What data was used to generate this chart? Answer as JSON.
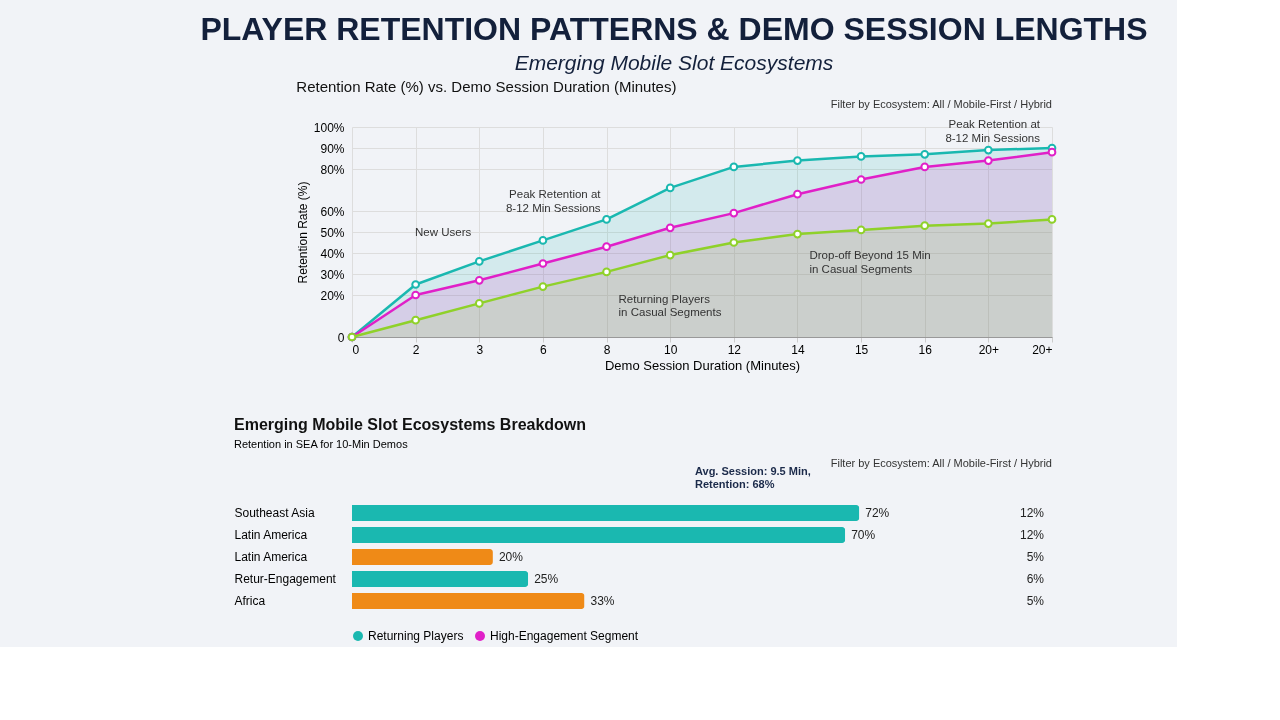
{
  "chart_data": [
    {
      "type": "area",
      "title": "Retention Rate (%) vs. Demo Session Duration (Minutes)",
      "xlabel": "Demo Session Duration (Minutes)",
      "ylabel": "Retention Rate (%)",
      "categories": [
        "0",
        "2",
        "3",
        "6",
        "8",
        "10",
        "12",
        "14",
        "15",
        "16",
        "20+",
        "20+"
      ],
      "series": [
        {
          "color": "#1ab8b0",
          "values": [
            0,
            25,
            36,
            46,
            56,
            71,
            81,
            84,
            86,
            87,
            89,
            90
          ]
        },
        {
          "color": "#e020c8",
          "values": [
            0,
            20,
            27,
            35,
            43,
            52,
            59,
            68,
            75,
            81,
            84,
            88
          ]
        },
        {
          "color": "#8fd12a",
          "values": [
            0,
            8,
            16,
            24,
            31,
            39,
            45,
            49,
            51,
            53,
            54,
            56
          ]
        }
      ],
      "ylim": [
        0,
        100
      ],
      "yticks": [
        {
          "value": 0,
          "label": "0"
        },
        {
          "value": 20,
          "label": "20%"
        },
        {
          "value": 30,
          "label": "30%"
        },
        {
          "value": 40,
          "label": "40%"
        },
        {
          "value": 50,
          "label": "50%"
        },
        {
          "value": 60,
          "label": "60%"
        },
        {
          "value": 80,
          "label": "80%"
        },
        {
          "value": 90,
          "label": "90%"
        },
        {
          "value": 100,
          "label": "100%"
        }
      ],
      "grid": true,
      "marker": "circle",
      "line_style": "solid",
      "annotations": [
        "PLAYER RETENTION PATTERNS & DEMO SESSION LENGTHS",
        "Emerging Mobile Slot Ecosystems",
        "Filter by Ecosystem: All / Mobile-First / Hybrid",
        "Peak Retention at\n8-12 Min Sessions",
        {
          "text": "New Users",
          "x": "3",
          "y": 36
        },
        {
          "text": "Peak Retention at\n8-12 Min Sessions",
          "x": "8",
          "y": 56
        },
        {
          "text": "Drop-off Beyond 15 Min\nin Casual Segments",
          "x": "14",
          "y": 49
        },
        {
          "text": "Returning Players\nin Casual Segments",
          "x": "8",
          "y": 31
        }
      ]
    },
    {
      "type": "bar",
      "orientation": "horizontal",
      "title": "Emerging Mobile Slot Ecosystems Breakdown",
      "subtitle": "Retention in SEA for 10-Min Demos",
      "categories": [
        "Southeast Asia",
        "Latin America",
        "Latin America",
        "Retur-Engagement",
        "Africa"
      ],
      "series": [
        {
          "name": "Returning Players",
          "color": "#1ab8b0",
          "colors": [
            "#1ab8b0",
            "#1ab8b0",
            "#ef8a17",
            "#1ab8b0",
            "#ef8a17"
          ],
          "values": [
            72,
            70,
            20,
            25,
            33
          ],
          "value_labels": [
            "72%",
            "70%",
            "20%",
            "25%",
            "33%"
          ]
        },
        {
          "name": "High-Engagement Segment",
          "color": "#e020c8",
          "values": [
            null,
            null,
            null,
            null,
            null
          ]
        }
      ],
      "legend": "bottom",
      "annotations": [
        "Avg. Session: 9.5 Min,\nRetention: 68%",
        "Filter by Ecosystem: All / Mobile-First / Hybrid",
        "12%",
        "12%",
        "5%",
        "6%",
        "5%"
      ]
    }
  ]
}
